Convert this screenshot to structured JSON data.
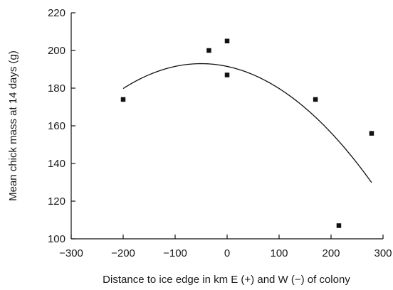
{
  "chart_data": {
    "type": "scatter",
    "title": "",
    "xlabel": "Distance to ice edge in km E (+) and W (−) of colony",
    "ylabel": "Mean chick mass at 14 days (g)",
    "xlim": [
      -300,
      300
    ],
    "ylim": [
      100,
      220
    ],
    "xticks": [
      -300,
      -200,
      -100,
      0,
      100,
      200,
      300
    ],
    "xtick_labels": [
      "−300",
      "−200",
      "−100",
      "0",
      "100",
      "200",
      "300"
    ],
    "yticks": [
      100,
      120,
      140,
      160,
      180,
      200,
      220
    ],
    "ytick_labels": [
      "100",
      "120",
      "140",
      "160",
      "180",
      "200",
      "220"
    ],
    "grid": false,
    "legend": "none",
    "points": [
      {
        "x": -200,
        "y": 174
      },
      {
        "x": -35,
        "y": 200
      },
      {
        "x": 0,
        "y": 205
      },
      {
        "x": 0,
        "y": 187
      },
      {
        "x": 170,
        "y": 174
      },
      {
        "x": 215,
        "y": 107
      },
      {
        "x": 278,
        "y": 156
      }
    ],
    "fit": {
      "type": "quadratic",
      "x_range": [
        -200,
        278
      ],
      "peak": {
        "x": -50,
        "y": 193
      },
      "a": -0.000587
    },
    "colors": {
      "marker": "#111111",
      "line": "#111111",
      "axis": "#111111"
    }
  }
}
